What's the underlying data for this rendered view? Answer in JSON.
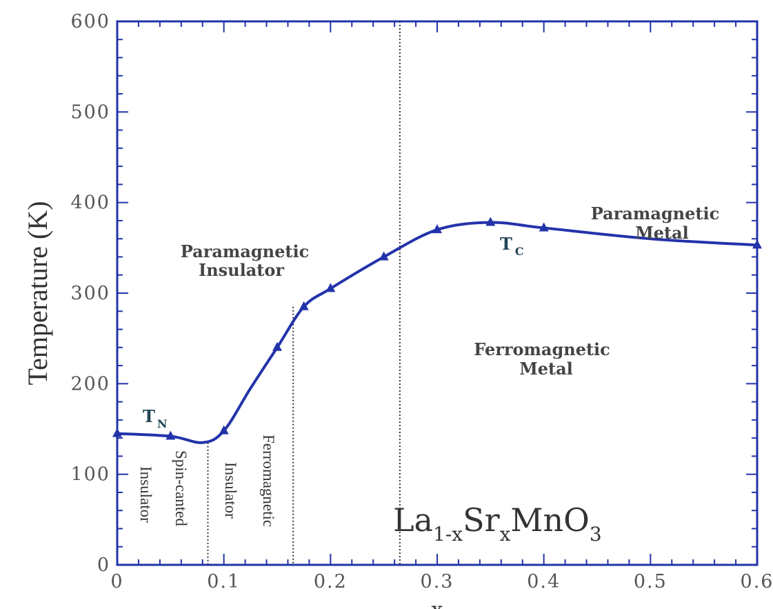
{
  "chart_data": {
    "type": "line",
    "xlabel": "x",
    "ylabel": "Temperature (K)",
    "xlim": [
      0,
      0.6
    ],
    "ylim": [
      0,
      600
    ],
    "x_ticks": [
      "0",
      "0.1",
      "0.2",
      "0.3",
      "0.4",
      "0.5",
      "0.6"
    ],
    "y_ticks": [
      "0",
      "100",
      "200",
      "300",
      "400",
      "500",
      "600"
    ],
    "line_color": "#2233aa",
    "series": [
      {
        "name": "T_N / T_C",
        "x": [
          0,
          0.05,
          0.08,
          0.1,
          0.125,
          0.15,
          0.175,
          0.2,
          0.25,
          0.3,
          0.35,
          0.4,
          0.5,
          0.6
        ],
        "y": [
          145,
          142,
          135,
          148,
          195,
          240,
          285,
          305,
          340,
          370,
          378,
          372,
          360,
          353
        ]
      }
    ],
    "markers_x": [
      0,
      0.05,
      0.1,
      0.15,
      0.175,
      0.2,
      0.25,
      0.3,
      0.35,
      0.4,
      0.6
    ],
    "markers_y": [
      145,
      142,
      148,
      240,
      285,
      305,
      340,
      370,
      378,
      372,
      353
    ],
    "dividers_x": [
      0.085,
      0.165,
      0.265
    ],
    "curve_labels": {
      "tn": {
        "main": "T",
        "sub": "N"
      },
      "tc": {
        "main": "T",
        "sub": "C"
      }
    },
    "regions": {
      "pm_insulator": [
        "Paramagnetic",
        "Insulator"
      ],
      "pm_metal": [
        "Paramagnetic",
        "Metal"
      ],
      "fm_metal": [
        "Ferromagnetic",
        "Metal"
      ]
    },
    "vertical_regions": {
      "insulator": "Insulator",
      "spin_canted": "Spin-canted",
      "insulator2": "Insulator",
      "ferromagnetic": "Ferromagnetic"
    },
    "formula": {
      "a": "La",
      "b": "1-x",
      "c": "Sr",
      "d": "x",
      "e": "MnO",
      "f": "3"
    }
  }
}
